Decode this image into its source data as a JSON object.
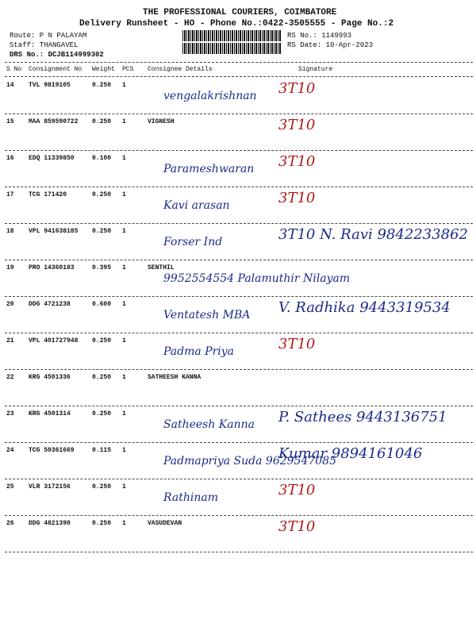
{
  "header": {
    "company": "THE PROFESSIONAL COURIERS, COIMBATORE",
    "subtitle": "Delivery Runsheet - HO - Phone No.:0422-3505555 - Page No.:2",
    "route": "Route: P N PALAYAM",
    "staff": "Staff: THANGAVEL",
    "drs_no": "DRS No.: DCJB114999302",
    "rs_no": "RS No.: 1149993",
    "rs_date": "RS Date: 10-Apr-2023"
  },
  "table": {
    "columns": [
      "S No",
      "Consignment No",
      "Weight",
      "PCS",
      "Consignee Details",
      "Signature"
    ],
    "rows": [
      {
        "s_no": "14",
        "consignment_no": "TVL 9819105",
        "weight": "0.250",
        "pcs": "1",
        "handwritten": "vengalakrishnan",
        "signature": "3T10"
      },
      {
        "s_no": "15",
        "consignment_no": "MAA 859590722",
        "weight": "0.250",
        "pcs": "1",
        "consignee": "VIGNESH",
        "signature": "3T10"
      },
      {
        "s_no": "16",
        "consignment_no": "EDQ 11339850",
        "weight": "0.100",
        "pcs": "1",
        "handwritten": "Parameshwaran",
        "signature": "3T10"
      },
      {
        "s_no": "17",
        "consignment_no": "TCG 171420",
        "weight": "0.250",
        "pcs": "1",
        "handwritten": "Kavi arasan",
        "signature": "3T10"
      },
      {
        "s_no": "18",
        "consignment_no": "VPL 941638185",
        "weight": "0.250",
        "pcs": "1",
        "handwritten": "Forser Ind",
        "signature": "3T10 N. Ravi 9842233862"
      },
      {
        "s_no": "19",
        "consignment_no": "PRO 14360183",
        "weight": "0.395",
        "pcs": "1",
        "consignee": "SENTHIL",
        "handwritten": "9952554554 Palamuthir Nilayam"
      },
      {
        "s_no": "20",
        "consignment_no": "DDG 4721238",
        "weight": "0.600",
        "pcs": "1",
        "handwritten": "Ventatesh MBA",
        "signature": "V. Radhika 9443319534"
      },
      {
        "s_no": "21",
        "consignment_no": "VPL 401727948",
        "weight": "0.250",
        "pcs": "1",
        "handwritten": "Padma Priya",
        "signature": "3T10"
      },
      {
        "s_no": "22",
        "consignment_no": "KRG 4501336",
        "weight": "0.250",
        "pcs": "1",
        "consignee": "SATHEESH KANNA"
      },
      {
        "s_no": "23",
        "consignment_no": "KRG 4501314",
        "weight": "0.250",
        "pcs": "1",
        "handwritten": "Satheesh Kanna",
        "signature": "P. Sathees 9443136751"
      },
      {
        "s_no": "24",
        "consignment_no": "TCG 50361669",
        "weight": "0.115",
        "pcs": "1",
        "handwritten": "Padmapriya Suda 9629547085",
        "signature": "Kumar 9894161046"
      },
      {
        "s_no": "25",
        "consignment_no": "VLR 3172156",
        "weight": "0.250",
        "pcs": "1",
        "handwritten": "Rathinam",
        "signature": "3T10"
      },
      {
        "s_no": "26",
        "consignment_no": "DDG 4821390",
        "weight": "0.250",
        "pcs": "1",
        "consignee": "VASUDEVAN",
        "signature": "3T10"
      }
    ]
  }
}
